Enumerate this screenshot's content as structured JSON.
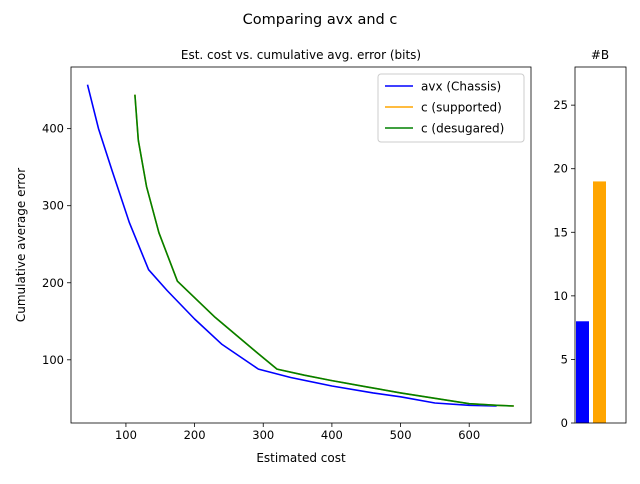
{
  "figure": {
    "suptitle": "Comparing avx and c"
  },
  "colors": {
    "avx": "#0000ff",
    "c_supported": "#ffa500",
    "c_desugared": "#008000"
  },
  "chart_data": [
    {
      "type": "line",
      "title": "Est. cost vs. cumulative avg. error (bits)",
      "xlabel": "Estimated cost",
      "ylabel": "Cumulative average error",
      "xlim": [
        20,
        690
      ],
      "ylim": [
        18,
        480
      ],
      "xticks": [
        100,
        200,
        300,
        400,
        500,
        600
      ],
      "yticks": [
        100,
        200,
        300,
        400
      ],
      "grid": false,
      "legend_position": "top-right",
      "series": [
        {
          "name": "avx (Chassis)",
          "color": "#0000ff",
          "points": [
            [
              44,
              457
            ],
            [
              60,
              400
            ],
            [
              80,
              345
            ],
            [
              105,
              278
            ],
            [
              133,
              217
            ],
            [
              160,
              190
            ],
            [
              200,
              153
            ],
            [
              240,
              120
            ],
            [
              293,
              88
            ],
            [
              340,
              77
            ],
            [
              400,
              66
            ],
            [
              460,
              57
            ],
            [
              500,
              52
            ],
            [
              550,
              44
            ],
            [
              600,
              41
            ],
            [
              640,
              40
            ]
          ]
        },
        {
          "name": "c (supported)",
          "color": "#ffa500",
          "points": [
            [
              113,
              444
            ],
            [
              118,
              385
            ],
            [
              130,
              325
            ],
            [
              148,
              265
            ],
            [
              175,
              202
            ],
            [
              230,
              155
            ],
            [
              290,
              110
            ],
            [
              320,
              88
            ],
            [
              360,
              80
            ],
            [
              400,
              73
            ],
            [
              450,
              65
            ],
            [
              500,
              57
            ],
            [
              550,
              50
            ],
            [
              600,
              43
            ],
            [
              640,
              41
            ],
            [
              665,
              40
            ]
          ]
        },
        {
          "name": "c (desugared)",
          "color": "#008000",
          "points": [
            [
              113,
              444
            ],
            [
              118,
              385
            ],
            [
              130,
              325
            ],
            [
              148,
              265
            ],
            [
              175,
              202
            ],
            [
              230,
              155
            ],
            [
              290,
              110
            ],
            [
              320,
              88
            ],
            [
              360,
              80
            ],
            [
              400,
              73
            ],
            [
              450,
              65
            ],
            [
              500,
              57
            ],
            [
              550,
              50
            ],
            [
              600,
              43
            ],
            [
              640,
              41
            ],
            [
              665,
              40
            ]
          ]
        }
      ]
    },
    {
      "type": "bar",
      "title": "#B",
      "categories": [
        "avx (Chassis)",
        "c (supported)"
      ],
      "values": [
        8,
        19
      ],
      "colors": [
        "#0000ff",
        "#ffa500"
      ],
      "ylim": [
        0,
        28
      ],
      "yticks": [
        0,
        5,
        10,
        15,
        20,
        25
      ],
      "grid": false
    }
  ]
}
